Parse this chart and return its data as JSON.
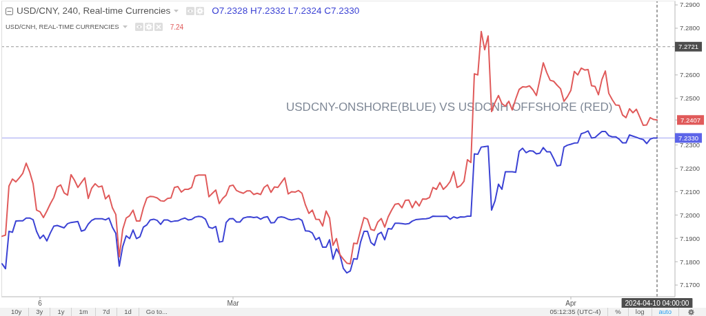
{
  "chart_data": {
    "type": "line",
    "title": "USD/CNY, 240, Real-time Currencies",
    "subtitle": "USD/CNH, REAL-TIME CURRENCIES",
    "categories": [
      null,
      null,
      null,
      null,
      null,
      null,
      null,
      null,
      null,
      null,
      null,
      "6",
      null,
      null,
      null,
      null,
      null,
      null,
      null,
      null,
      null,
      null,
      null,
      null,
      null,
      null,
      null,
      null,
      null,
      null,
      null,
      null,
      null,
      null,
      null,
      null,
      null,
      null,
      null,
      null,
      null,
      null,
      null,
      null,
      null,
      null,
      null,
      null,
      null,
      null,
      null,
      null,
      null,
      null,
      null,
      null,
      null,
      null,
      null,
      null,
      null,
      null,
      null,
      null,
      null,
      null,
      null,
      "Mar",
      null,
      null,
      null,
      null,
      null,
      null,
      null,
      null,
      null,
      null,
      null,
      null,
      null,
      null,
      null,
      null,
      null,
      null,
      null,
      null,
      null,
      null,
      null,
      null,
      null,
      null,
      null,
      null,
      null,
      null,
      null,
      null,
      null,
      null,
      null,
      null,
      null,
      null,
      null,
      null,
      null,
      null,
      null,
      null,
      null,
      null,
      null,
      null,
      null,
      null,
      null,
      null,
      null,
      null,
      null,
      null,
      null,
      null,
      null,
      null,
      null,
      null,
      null,
      null,
      null,
      null,
      null,
      null,
      null,
      null,
      null,
      null,
      null,
      null,
      null,
      null,
      null,
      null,
      null,
      null,
      null,
      null,
      null,
      null,
      null,
      null,
      null,
      null,
      null,
      null,
      null,
      null,
      null,
      null,
      null,
      null,
      null,
      "Apr",
      null,
      null,
      null,
      null,
      null,
      null,
      null,
      null,
      null,
      null,
      null,
      null,
      null,
      null,
      null,
      null,
      null,
      null,
      null,
      null,
      null,
      null,
      null,
      null,
      "2024-04-10 04:00:00"
    ],
    "series": [
      {
        "color": "#3b42d4",
        "values": [
          7.1791,
          7.177,
          7.193,
          7.1926,
          7.1974,
          7.1975,
          7.1975,
          7.1987,
          7.1987,
          7.198,
          7.193,
          7.1899,
          7.1914,
          7.1889,
          7.1923,
          7.1952,
          7.1955,
          7.195,
          7.1945,
          7.1963,
          7.1968,
          7.197,
          7.1972,
          7.1931,
          7.1936,
          7.1961,
          7.1977,
          7.1984,
          7.1984,
          7.1984,
          7.1979,
          7.1987,
          7.1948,
          7.1921,
          7.1781,
          7.1865,
          7.1911,
          7.1899,
          7.1936,
          7.1899,
          7.1907,
          7.1948,
          7.1958,
          7.1979,
          7.1982,
          7.1977,
          7.196,
          7.1979,
          7.1979,
          7.1971,
          7.1974,
          7.1975,
          7.1982,
          7.1987,
          7.1979,
          7.1981,
          7.1991,
          7.1994,
          7.1992,
          7.1982,
          7.1948,
          7.1943,
          7.1951,
          7.1884,
          7.1887,
          7.1968,
          7.1984,
          7.1985,
          7.197,
          7.197,
          7.1987,
          7.1991,
          7.1992,
          7.1989,
          7.1991,
          7.1982,
          7.199,
          7.1993,
          7.1966,
          7.1968,
          7.1989,
          7.1992,
          7.1989,
          7.1982,
          7.1979,
          7.1982,
          7.1985,
          7.1977,
          7.1932,
          7.1931,
          7.1923,
          7.1894,
          7.1904,
          7.1862,
          7.1862,
          7.1894,
          7.1811,
          7.1855,
          7.183,
          7.1771,
          7.1752,
          7.176,
          7.1813,
          7.1811,
          7.1884,
          7.193,
          7.193,
          7.1882,
          7.187,
          7.1917,
          7.1926,
          7.1894,
          7.1942,
          7.194,
          7.1965,
          7.1965,
          7.1963,
          7.1961,
          7.1963,
          7.1974,
          7.198,
          7.1982,
          7.1983,
          7.1984,
          7.1987,
          7.1995,
          7.1994,
          7.1994,
          7.1994,
          7.1995,
          7.1982,
          7.1992,
          7.1987,
          7.1992,
          7.1991,
          7.1995,
          7.1995,
          7.2262,
          7.226,
          7.2291,
          7.2293,
          7.2295,
          7.2021,
          7.2061,
          7.2132,
          7.211,
          7.2185,
          7.2185,
          7.2185,
          7.2183,
          7.2273,
          7.2286,
          7.2267,
          7.2275,
          7.2274,
          7.2262,
          7.2265,
          7.2289,
          7.2271,
          7.2271,
          7.2242,
          7.221,
          7.2213,
          7.2291,
          7.2299,
          7.2303,
          7.2308,
          7.2309,
          7.2348,
          7.2353,
          7.236,
          7.233,
          7.2332,
          7.2345,
          7.2358,
          7.2358,
          7.234,
          7.2335,
          7.2335,
          7.2325,
          7.2309,
          7.2309,
          7.2343,
          7.2338,
          7.2333,
          7.2327,
          7.2323,
          7.2306,
          7.2325,
          7.233,
          7.233
        ]
      },
      {
        "color": "#e05a5a",
        "values": [
          7.1909,
          7.1914,
          7.2124,
          7.2154,
          7.2142,
          7.2159,
          7.2178,
          7.2222,
          7.2185,
          7.2134,
          7.2021,
          7.2014,
          7.1989,
          7.2017,
          7.2048,
          7.2075,
          7.212,
          7.2129,
          7.2095,
          7.2085,
          7.2173,
          7.2149,
          7.2118,
          7.2139,
          7.2159,
          7.2071,
          7.2115,
          7.2134,
          7.212,
          7.2124,
          7.2069,
          7.2085,
          7.2031,
          7.2002,
          7.1821,
          7.1938,
          7.1987,
          7.1997,
          7.2021,
          7.1974,
          7.1974,
          7.2031,
          7.2073,
          7.208,
          7.2078,
          7.2073,
          7.2061,
          7.2059,
          7.2071,
          7.2073,
          7.2118,
          7.2122,
          7.2098,
          7.211,
          7.211,
          7.2118,
          7.2167,
          7.2171,
          7.2171,
          7.2171,
          7.2078,
          7.2093,
          7.2107,
          7.2049,
          7.2071,
          7.2085,
          7.2124,
          7.2128,
          7.2105,
          7.2098,
          7.2093,
          7.2103,
          7.2103,
          7.2088,
          7.2093,
          7.2088,
          7.2118,
          7.2129,
          7.2097,
          7.212,
          7.2118,
          7.2139,
          7.2159,
          7.209,
          7.21,
          7.2098,
          7.2105,
          7.2093,
          7.2043,
          7.2007,
          7.2021,
          7.1982,
          7.1981,
          7.1953,
          7.2017,
          7.1987,
          7.187,
          7.1899,
          7.183,
          7.1811,
          7.1794,
          7.1791,
          7.1879,
          7.1877,
          7.1936,
          7.1989,
          7.1982,
          7.1938,
          7.1934,
          7.197,
          7.1985,
          7.1948,
          7.1992,
          7.2021,
          7.2046,
          7.2049,
          7.2031,
          7.2063,
          7.2064,
          7.2031,
          7.2059,
          7.2039,
          7.2069,
          7.2068,
          7.2075,
          7.2118,
          7.211,
          7.2139,
          7.211,
          7.2124,
          7.2144,
          7.2186,
          7.2118,
          7.2126,
          7.2144,
          7.2237,
          7.2225,
          7.2605,
          7.26,
          7.2786,
          7.2708,
          7.2767,
          7.2443,
          7.2482,
          7.2512,
          7.2477,
          7.2466,
          7.2487,
          7.245,
          7.2497,
          7.2538,
          7.2549,
          7.2548,
          7.2553,
          7.2536,
          7.2512,
          7.258,
          7.2652,
          7.261,
          7.2577,
          7.2573,
          7.2556,
          7.2541,
          7.2487,
          7.2507,
          7.2534,
          7.2615,
          7.26,
          7.2629,
          7.2621,
          7.2623,
          7.2554,
          7.2551,
          7.2515,
          7.258,
          7.2617,
          7.2521,
          7.2494,
          7.2471,
          7.247,
          7.2428,
          7.2417,
          7.2455,
          7.2438,
          7.2453,
          7.2419,
          7.2384,
          7.2386,
          7.2417,
          7.2409,
          7.2407
        ]
      }
    ],
    "ylim": [
      7.165,
      7.2915
    ],
    "yticks": [
      {
        "value": 7.17,
        "label": "7.1700"
      },
      {
        "value": 7.18,
        "label": "7.1800"
      },
      {
        "value": 7.19,
        "label": "7.1900"
      },
      {
        "value": 7.2,
        "label": "7.2000"
      },
      {
        "value": 7.21,
        "label": "7.2100"
      },
      {
        "value": 7.22,
        "label": "7.2200"
      },
      {
        "value": 7.23,
        "label": "7.2300"
      },
      7.2407,
      {
        "value": 7.25,
        "label": "7.2500"
      },
      {
        "value": 7.26,
        "label": "7.2600"
      },
      {
        "value": 7.28,
        "label": "7.2800"
      },
      {
        "value": 7.29,
        "label": "7.2900"
      }
    ],
    "ref_lines": [
      {
        "axis": "y",
        "value": 7.233,
        "label": "7.2330",
        "color": "#5c64e8"
      },
      {
        "axis": "y",
        "value": 7.2721,
        "label": "7.2721",
        "color": "#4d4d4d",
        "line_style": "dashed"
      },
      {
        "axis": "x",
        "value": "2024-04-10 04:00:00",
        "color": "#4d4d4d",
        "line_style": "dashed"
      }
    ],
    "annotations": [
      "O7.2328 H7.2332 L7.2324 C7.2330",
      "7.24",
      "USDCNY-ONSHORE(BLUE) VS USDCNH OFFSHORE (RED)",
      "10y",
      "3y",
      "1y",
      "1m",
      "7d",
      "1d",
      "Go to...",
      "05:12:35 (UTC-4)",
      "%",
      "log",
      "auto"
    ]
  }
}
